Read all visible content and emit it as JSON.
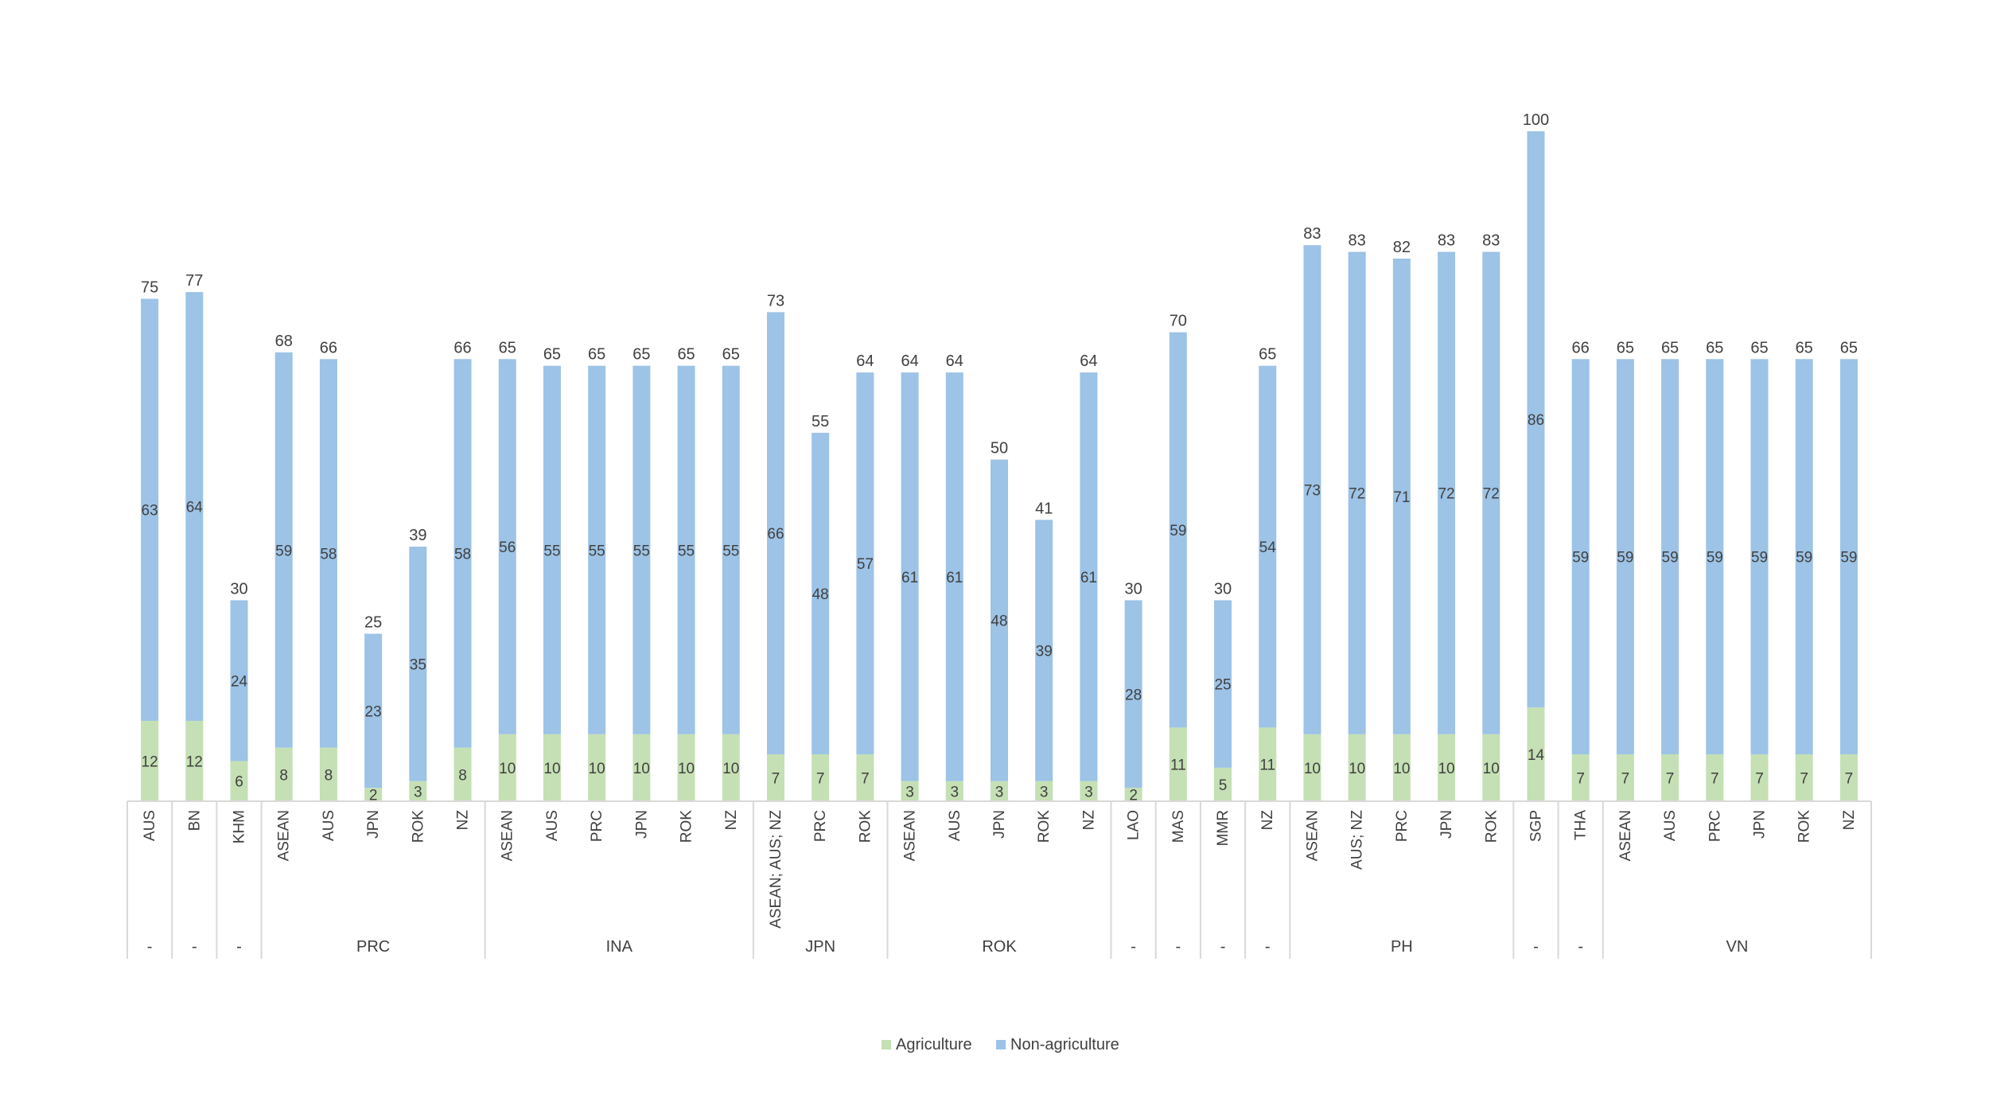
{
  "chart_data": {
    "type": "bar",
    "stacked": true,
    "title": "",
    "xlabel": "",
    "ylabel": "",
    "ylim": [
      0,
      100
    ],
    "grid": false,
    "legend": "bottom-center",
    "colors": {
      "Agriculture": "#c5e0b4",
      "Non-agriculture": "#9dc3e6",
      "axis": "#d9d9d9",
      "text": "#404040"
    },
    "categories": [
      {
        "label": "AUS",
        "group": "-"
      },
      {
        "label": "BN",
        "group": "-"
      },
      {
        "label": "KHM",
        "group": "-"
      },
      {
        "label": "ASEAN",
        "group": "PRC"
      },
      {
        "label": "AUS",
        "group": "PRC"
      },
      {
        "label": "JPN",
        "group": "PRC"
      },
      {
        "label": "ROK",
        "group": "PRC"
      },
      {
        "label": "NZ",
        "group": "PRC"
      },
      {
        "label": "ASEAN",
        "group": "INA"
      },
      {
        "label": "AUS",
        "group": "INA"
      },
      {
        "label": "PRC",
        "group": "INA"
      },
      {
        "label": "JPN",
        "group": "INA"
      },
      {
        "label": "ROK",
        "group": "INA"
      },
      {
        "label": "NZ",
        "group": "INA"
      },
      {
        "label": "ASEAN; AUS; NZ",
        "group": "JPN"
      },
      {
        "label": "PRC",
        "group": "JPN"
      },
      {
        "label": "ROK",
        "group": "JPN"
      },
      {
        "label": "ASEAN",
        "group": "ROK"
      },
      {
        "label": "AUS",
        "group": "ROK"
      },
      {
        "label": "JPN",
        "group": "ROK"
      },
      {
        "label": "ROK",
        "group": "ROK"
      },
      {
        "label": "NZ",
        "group": "ROK"
      },
      {
        "label": "LAO",
        "group": "-"
      },
      {
        "label": "MAS",
        "group": "-"
      },
      {
        "label": "MMR",
        "group": "-"
      },
      {
        "label": "NZ",
        "group": "-"
      },
      {
        "label": "ASEAN",
        "group": "PH"
      },
      {
        "label": "AUS; NZ",
        "group": "PH"
      },
      {
        "label": "PRC",
        "group": "PH"
      },
      {
        "label": "JPN",
        "group": "PH"
      },
      {
        "label": "ROK",
        "group": "PH"
      },
      {
        "label": "SGP",
        "group": "-"
      },
      {
        "label": "THA",
        "group": "-"
      },
      {
        "label": "ASEAN",
        "group": "VN"
      },
      {
        "label": "AUS",
        "group": "VN"
      },
      {
        "label": "PRC",
        "group": "VN"
      },
      {
        "label": "JPN",
        "group": "VN"
      },
      {
        "label": "ROK",
        "group": "VN"
      },
      {
        "label": "NZ",
        "group": "VN"
      }
    ],
    "group_spans": [
      {
        "label": "-",
        "start": 0,
        "end": 0
      },
      {
        "label": "-",
        "start": 1,
        "end": 1
      },
      {
        "label": "-",
        "start": 2,
        "end": 2
      },
      {
        "label": "PRC",
        "start": 3,
        "end": 7
      },
      {
        "label": "INA",
        "start": 8,
        "end": 13
      },
      {
        "label": "JPN",
        "start": 14,
        "end": 16
      },
      {
        "label": "ROK",
        "start": 17,
        "end": 21
      },
      {
        "label": "-",
        "start": 22,
        "end": 22
      },
      {
        "label": "-",
        "start": 23,
        "end": 23
      },
      {
        "label": "-",
        "start": 24,
        "end": 24
      },
      {
        "label": "-",
        "start": 25,
        "end": 25
      },
      {
        "label": "PH",
        "start": 26,
        "end": 30
      },
      {
        "label": "-",
        "start": 31,
        "end": 31
      },
      {
        "label": "-",
        "start": 32,
        "end": 32
      },
      {
        "label": "VN",
        "start": 33,
        "end": 38
      }
    ],
    "series": [
      {
        "name": "Agriculture",
        "values": [
          12,
          12,
          6,
          8,
          8,
          2,
          3,
          8,
          10,
          10,
          10,
          10,
          10,
          10,
          7,
          7,
          7,
          3,
          3,
          3,
          3,
          3,
          2,
          11,
          5,
          11,
          10,
          10,
          10,
          10,
          10,
          14,
          7,
          7,
          7,
          7,
          7,
          7,
          7
        ]
      },
      {
        "name": "Non-agriculture",
        "values": [
          63,
          64,
          24,
          59,
          58,
          23,
          35,
          58,
          56,
          55,
          55,
          55,
          55,
          55,
          66,
          48,
          57,
          61,
          61,
          48,
          39,
          61,
          28,
          59,
          25,
          54,
          73,
          72,
          71,
          72,
          72,
          86,
          59,
          59,
          59,
          59,
          59,
          59,
          59
        ]
      }
    ],
    "totals": [
      75,
      77,
      30,
      68,
      66,
      25,
      39,
      66,
      65,
      65,
      65,
      65,
      65,
      65,
      73,
      55,
      64,
      64,
      64,
      50,
      41,
      64,
      30,
      70,
      30,
      65,
      83,
      83,
      82,
      83,
      83,
      100,
      66,
      65,
      65,
      65,
      65,
      65,
      65
    ]
  }
}
